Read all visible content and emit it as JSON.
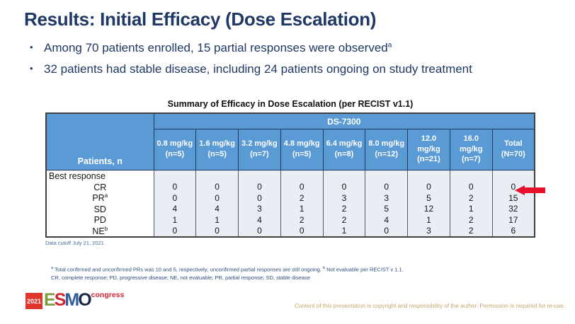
{
  "slide": {
    "title": "Results: Initial Efficacy (Dose Escalation)",
    "bullets": [
      {
        "text": "Among 70 patients enrolled, 15 partial responses were observed",
        "sup": "a"
      },
      {
        "text": "32 patients had stable disease, including 24 patients ongoing on study treatment",
        "sup": ""
      }
    ]
  },
  "table": {
    "title": "Summary of Efficacy in Dose Escalation (per RECIST v1.1)",
    "corner_label": "Patients, n",
    "group_header": "DS-7300",
    "columns": [
      {
        "dose": "0.8 mg/kg",
        "n": "(n=5)"
      },
      {
        "dose": "1.6 mg/kg",
        "n": "(n=5)"
      },
      {
        "dose": "3.2 mg/kg",
        "n": "(n=7)"
      },
      {
        "dose": "4.8 mg/kg",
        "n": "(n=5)"
      },
      {
        "dose": "6.4 mg/kg",
        "n": "(n=8)"
      },
      {
        "dose": "8.0 mg/kg",
        "n": "(n=12)"
      },
      {
        "dose": "12.0 mg/kg",
        "n": "(n=21)"
      },
      {
        "dose": "16.0 mg/kg",
        "n": "(n=7)"
      },
      {
        "dose": "Total",
        "n": "(N=70)"
      }
    ],
    "section_row": "Best response",
    "rows": [
      {
        "label": "CR",
        "sup": "",
        "values": [
          "0",
          "0",
          "0",
          "0",
          "0",
          "0",
          "0",
          "0",
          "0"
        ]
      },
      {
        "label": "PR",
        "sup": "a",
        "values": [
          "0",
          "0",
          "0",
          "2",
          "3",
          "3",
          "5",
          "2",
          "15"
        ]
      },
      {
        "label": "SD",
        "sup": "",
        "values": [
          "4",
          "4",
          "3",
          "1",
          "2",
          "5",
          "12",
          "1",
          "32"
        ]
      },
      {
        "label": "PD",
        "sup": "",
        "values": [
          "1",
          "1",
          "4",
          "2",
          "2",
          "4",
          "1",
          "2",
          "17"
        ]
      },
      {
        "label": "NE",
        "sup": "b",
        "values": [
          "0",
          "0",
          "0",
          "0",
          "1",
          "0",
          "3",
          "2",
          "6"
        ]
      }
    ],
    "cutoff": "Data cutoff July 21, 2021"
  },
  "footnotes": {
    "sup_a": "a",
    "text_a": " Total confirmed and unconfirmed PRs was 10 and 5, respectively; unconfirmed partial responses are still ongoing. ",
    "sup_b": "b",
    "text_b": " Not evaluable per RECIST v 1.1.",
    "line2": "CR, complete response; PD, progressive disease; NE, not evaluable; PR, partial response; SD, stable disease"
  },
  "footer": {
    "logo": {
      "year": "2021",
      "letters": [
        "E",
        "S",
        "M",
        "O"
      ],
      "congress": "congress"
    },
    "copyright": "Content of this presentation  is copyright and responsibility  of the author.  Permission  is required  for re-use."
  },
  "colors": {
    "title_navy": "#1F3864",
    "header_blue": "#5B9BD5",
    "body_cell_blue": "#E9EDF4",
    "arrow_red": "#E8112D",
    "logo_red": "#D22730",
    "copyright_tan": "#C7A571"
  }
}
